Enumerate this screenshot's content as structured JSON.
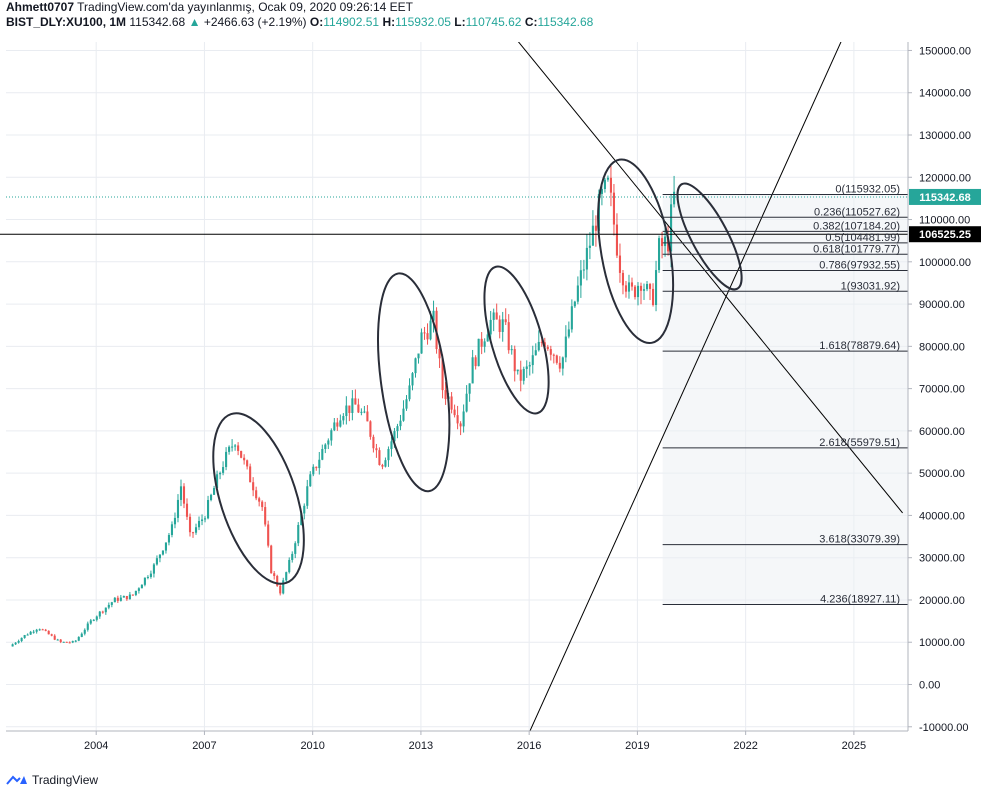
{
  "header": {
    "publisher": "Ahmett0707",
    "published_text": "TradingView.com'da yayınlanmış, Ocak 09, 2020 09:26:14 EET",
    "symbol": "BIST_DLY:XU100, 1M",
    "last": "115342.68",
    "change_arrow": "▲",
    "change": "+2466.63 (+2.19%)",
    "o_label": "O:",
    "o": "114902.51",
    "h_label": "H:",
    "h": "115932.05",
    "l_label": "L:",
    "l": "110745.62",
    "c_label": "C:",
    "c": "115342.68"
  },
  "footer": {
    "brand": "TradingView"
  },
  "colors": {
    "up": "#26a69a",
    "down": "#ef5350",
    "grid": "#e9ecf1",
    "text": "#131722"
  },
  "chart_data": {
    "type": "candlestick",
    "interval": "1M",
    "x_tick_labels": [
      "2004",
      "2007",
      "2010",
      "2013",
      "2016",
      "2019",
      "2022",
      "2025"
    ],
    "x_tick_years": [
      2004,
      2007,
      2010,
      2013,
      2016,
      2019,
      2022,
      2025
    ],
    "xlim": [
      2001.5,
      2026.5
    ],
    "ylim": [
      -11000,
      152000
    ],
    "y_tick_labels": [
      "-10000.00",
      "0.00",
      "10000.00",
      "20000.00",
      "30000.00",
      "40000.00",
      "50000.00",
      "60000.00",
      "70000.00",
      "80000.00",
      "90000.00",
      "100000.00",
      "110000.00",
      "120000.00",
      "130000.00",
      "140000.00",
      "150000.00"
    ],
    "y_tick_values": [
      -10000,
      0,
      10000,
      20000,
      30000,
      40000,
      50000,
      60000,
      70000,
      80000,
      90000,
      100000,
      110000,
      120000,
      130000,
      140000,
      150000
    ],
    "price_anchors": [
      [
        2001.6,
        9000
      ],
      [
        2002.0,
        11500
      ],
      [
        2002.4,
        13500
      ],
      [
        2003.0,
        10000
      ],
      [
        2003.4,
        10000
      ],
      [
        2003.9,
        15500
      ],
      [
        2004.5,
        20000
      ],
      [
        2005.0,
        21000
      ],
      [
        2005.6,
        28000
      ],
      [
        2006.1,
        37000
      ],
      [
        2006.35,
        47000
      ],
      [
        2006.6,
        35000
      ],
      [
        2007.0,
        40000
      ],
      [
        2007.5,
        52000
      ],
      [
        2007.85,
        58000
      ],
      [
        2008.2,
        50000
      ],
      [
        2008.6,
        42000
      ],
      [
        2008.85,
        27000
      ],
      [
        2009.1,
        22000
      ],
      [
        2009.4,
        30000
      ],
      [
        2009.9,
        48000
      ],
      [
        2010.3,
        56000
      ],
      [
        2010.8,
        65000
      ],
      [
        2011.2,
        66000
      ],
      [
        2011.5,
        62000
      ],
      [
        2011.9,
        52000
      ],
      [
        2012.3,
        60000
      ],
      [
        2012.7,
        70000
      ],
      [
        2013.0,
        82000
      ],
      [
        2013.35,
        86000
      ],
      [
        2013.6,
        70000
      ],
      [
        2013.9,
        66000
      ],
      [
        2014.1,
        62000
      ],
      [
        2014.4,
        75000
      ],
      [
        2014.9,
        86000
      ],
      [
        2015.3,
        85000
      ],
      [
        2015.7,
        72000
      ],
      [
        2016.0,
        75000
      ],
      [
        2016.4,
        82000
      ],
      [
        2016.9,
        76000
      ],
      [
        2017.3,
        92000
      ],
      [
        2017.7,
        105000
      ],
      [
        2018.0,
        115000
      ],
      [
        2018.2,
        118000
      ],
      [
        2018.5,
        100000
      ],
      [
        2018.8,
        92000
      ],
      [
        2019.1,
        96000
      ],
      [
        2019.4,
        90000
      ],
      [
        2019.6,
        103000
      ],
      [
        2019.85,
        105000
      ],
      [
        2020.0,
        115342
      ]
    ],
    "price_line": {
      "value": 115342.68,
      "label": "115342.68"
    },
    "horizontal_line": {
      "value": 106525.25,
      "label": "106525.25"
    },
    "fibonacci": {
      "start_year": 2019.7,
      "levels": [
        {
          "ratio": "0",
          "value": 115932.05,
          "label": "0(115932.05)"
        },
        {
          "ratio": "0.236",
          "value": 110527.62,
          "label": "0.236(110527.62)"
        },
        {
          "ratio": "0.382",
          "value": 107184.2,
          "label": "0.382(107184.20)"
        },
        {
          "ratio": "0.5",
          "value": 104481.99,
          "label": "0.5(104481.99)"
        },
        {
          "ratio": "0.618",
          "value": 101779.77,
          "label": "0.618(101779.77)"
        },
        {
          "ratio": "0.786",
          "value": 97932.55,
          "label": "0.786(97932.55)"
        },
        {
          "ratio": "1",
          "value": 93031.92,
          "label": "1(93031.92)"
        },
        {
          "ratio": "1.618",
          "value": 78879.64,
          "label": "1.618(78879.64)"
        },
        {
          "ratio": "2.618",
          "value": 55979.51,
          "label": "2.618(55979.51)"
        },
        {
          "ratio": "3.618",
          "value": 33079.39,
          "label": "3.618(33079.39)"
        },
        {
          "ratio": "4.236",
          "value": 18927.11,
          "label": "4.236(18927.11)"
        }
      ]
    },
    "trend_lines": [
      {
        "from": [
          2014.56,
          164000
        ],
        "to": [
          2026.35,
          40600
        ]
      },
      {
        "from": [
          2015.44,
          -22000
        ],
        "to": [
          2024.8,
          155000
        ]
      }
    ],
    "ellipses": [
      {
        "center": [
          2008.5,
          44000
        ],
        "rx_years": 2.1,
        "ry_value": 21000,
        "rotation_deg": 72
      },
      {
        "center": [
          2012.8,
          71500
        ],
        "rx_years": 1.8,
        "ry_value": 26000,
        "rotation_deg": 82
      },
      {
        "center": [
          2015.65,
          81500
        ],
        "rx_years": 1.4,
        "ry_value": 18000,
        "rotation_deg": 74
      },
      {
        "center": [
          2018.95,
          102500
        ],
        "rx_years": 1.9,
        "ry_value": 22000,
        "rotation_deg": 80
      },
      {
        "center": [
          2021.0,
          106000
        ],
        "rx_years": 1.0,
        "ry_value": 14000,
        "rotation_deg": 62
      }
    ]
  }
}
